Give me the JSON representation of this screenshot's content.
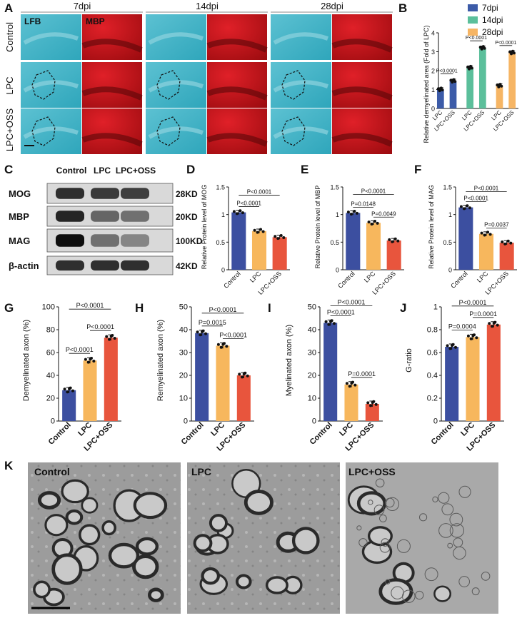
{
  "panel_letters": [
    "A",
    "B",
    "C",
    "D",
    "E",
    "F",
    "G",
    "H",
    "I",
    "J",
    "K"
  ],
  "panelA": {
    "timepoints": [
      "7dpi",
      "14dpi",
      "28dpi"
    ],
    "rows": [
      "Control",
      "LPC",
      "LPC+OSS"
    ],
    "stains": [
      "LFB",
      "MBP"
    ],
    "colors": {
      "lfb": "#3fb1c4",
      "lfb_light": "#8fd3de",
      "mbp": "#c2141a",
      "mbp_dark": "#5a0608"
    }
  },
  "panelC": {
    "columns": [
      "Control",
      "LPC",
      "LPC+OSS"
    ],
    "proteins": [
      "MOG",
      "MBP",
      "MAG",
      "β-actin"
    ],
    "sizes": [
      "28KD",
      "20KD",
      "100KD",
      "42KD"
    ],
    "band_intensity": [
      [
        0.85,
        0.8,
        0.78
      ],
      [
        0.9,
        0.6,
        0.55
      ],
      [
        1.0,
        0.55,
        0.45
      ],
      [
        0.85,
        0.85,
        0.85
      ]
    ]
  },
  "colors": {
    "control": "#3c4fa0",
    "lpc": "#f7b75d",
    "lpc_oss": "#e8553d",
    "d7": "#3c5ba8",
    "d14": "#5bbf9b",
    "d28": "#f6b564"
  },
  "panelK": {
    "labels": [
      "Control",
      "LPC",
      "LPC+OSS"
    ]
  },
  "chart_data": [
    {
      "panel": "B",
      "type": "bar",
      "legend": [
        "7dpi",
        "14dpi",
        "28dpi"
      ],
      "ylabel": "Relative demyelinated area (Fold of LPC)",
      "ylim": [
        0,
        4
      ],
      "yticks": [
        0,
        1,
        2,
        3,
        4
      ],
      "categories": [
        "LPC",
        "LPC+OSS",
        "LPC",
        "LPC+OSS",
        "LPC",
        "LPC+OSS"
      ],
      "groups": [
        "7dpi",
        "7dpi",
        "14dpi",
        "14dpi",
        "28dpi",
        "28dpi"
      ],
      "values": [
        1.0,
        1.45,
        2.15,
        3.2,
        1.2,
        2.95
      ],
      "significance": [
        {
          "text": "P<0.0001",
          "from": 0,
          "to": 1
        },
        {
          "text": "P<0.0001",
          "from": 2,
          "to": 3
        },
        {
          "text": "P<0.0001",
          "from": 4,
          "to": 5
        }
      ]
    },
    {
      "panel": "D",
      "type": "bar",
      "ylabel": "Relative Protein level of MOG",
      "ylim": [
        0,
        1.5
      ],
      "yticks": [
        0,
        0.5,
        1.0,
        1.5
      ],
      "categories": [
        "Control",
        "LPC",
        "LPC+OSS"
      ],
      "values": [
        1.04,
        0.7,
        0.59
      ],
      "significance": [
        {
          "text": "P<0.0001",
          "from": 0,
          "to": 1
        },
        {
          "text": "P<0.0001",
          "from": 0,
          "to": 2
        }
      ]
    },
    {
      "panel": "E",
      "type": "bar",
      "ylabel": "Relative Protein level of MBP",
      "ylim": [
        0,
        1.5
      ],
      "yticks": [
        0,
        0.5,
        1.0,
        1.5
      ],
      "categories": [
        "Control",
        "LPC",
        "LPC+OSS"
      ],
      "values": [
        1.03,
        0.85,
        0.53
      ],
      "significance": [
        {
          "text": "P=0.0148",
          "from": 0,
          "to": 1
        },
        {
          "text": "P<0.0001",
          "from": 0,
          "to": 2
        },
        {
          "text": "P=0.0049",
          "from": 1,
          "to": 2
        }
      ]
    },
    {
      "panel": "F",
      "type": "bar",
      "ylabel": "Relative Protein level of MAG",
      "ylim": [
        0,
        1.5
      ],
      "yticks": [
        0,
        0.5,
        1.0,
        1.5
      ],
      "categories": [
        "Control",
        "LPC",
        "LPC+OSS"
      ],
      "values": [
        1.13,
        0.65,
        0.49
      ],
      "significance": [
        {
          "text": "P<0.0001",
          "from": 0,
          "to": 1
        },
        {
          "text": "P<0.0001",
          "from": 0,
          "to": 2
        },
        {
          "text": "P=0.0037",
          "from": 1,
          "to": 2
        }
      ]
    },
    {
      "panel": "G",
      "type": "bar",
      "ylabel": "Demyelinated axon (%)",
      "ylim": [
        0,
        100
      ],
      "yticks": [
        0,
        20,
        40,
        60,
        80,
        100
      ],
      "categories": [
        "Control",
        "LPC",
        "LPC+OSS"
      ],
      "values": [
        27,
        53,
        73
      ],
      "significance": [
        {
          "text": "P<0.0001",
          "from": 0,
          "to": 1
        },
        {
          "text": "P<0.0001",
          "from": 0,
          "to": 2
        },
        {
          "text": "P<0.0001",
          "from": 1,
          "to": 2
        }
      ]
    },
    {
      "panel": "H",
      "type": "bar",
      "ylabel": "Remyelinated axon (%)",
      "ylim": [
        0,
        50
      ],
      "yticks": [
        0,
        10,
        20,
        30,
        40,
        50
      ],
      "categories": [
        "Control",
        "LPC",
        "LPC+OSS"
      ],
      "values": [
        38.5,
        33,
        20
      ],
      "significance": [
        {
          "text": "P=0.0015",
          "from": 0,
          "to": 1
        },
        {
          "text": "P<0.0001",
          "from": 0,
          "to": 2
        },
        {
          "text": "P<0.0001",
          "from": 1,
          "to": 2
        }
      ]
    },
    {
      "panel": "I",
      "type": "bar",
      "ylabel": "Myelinated axon (%)",
      "ylim": [
        0,
        50
      ],
      "yticks": [
        0,
        10,
        20,
        30,
        40,
        50
      ],
      "categories": [
        "Control",
        "LPC",
        "LPC+OSS"
      ],
      "values": [
        43,
        16,
        7.5
      ],
      "significance": [
        {
          "text": "P<0.0001",
          "from": 0,
          "to": 1
        },
        {
          "text": "P<0.0001",
          "from": 0,
          "to": 2
        },
        {
          "text": "P=0.0001",
          "from": 1,
          "to": 2
        }
      ]
    },
    {
      "panel": "J",
      "type": "bar",
      "ylabel": "G-ratio",
      "ylim": [
        0,
        1.0
      ],
      "yticks": [
        0,
        0.2,
        0.4,
        0.6,
        0.8,
        1.0
      ],
      "categories": [
        "Control",
        "LPC",
        "LPC+OSS"
      ],
      "values": [
        0.65,
        0.735,
        0.845
      ],
      "significance": [
        {
          "text": "P=0.0004",
          "from": 0,
          "to": 1
        },
        {
          "text": "P<0.0001",
          "from": 0,
          "to": 2
        },
        {
          "text": "P=0.0001",
          "from": 1,
          "to": 2
        }
      ]
    }
  ]
}
